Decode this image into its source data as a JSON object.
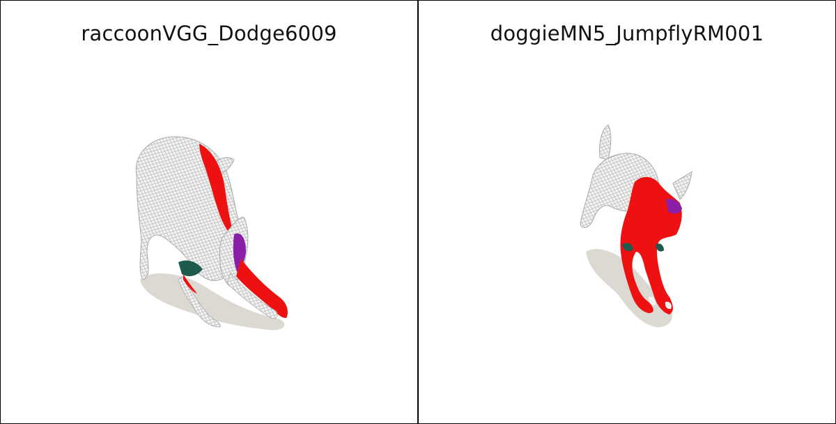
{
  "panels": [
    {
      "title": "raccoonVGG_Dodge6009"
    },
    {
      "title": "doggieMN5_JumpflyRM001"
    }
  ],
  "colors": {
    "background": "#ffffff",
    "border": "#000000",
    "shadow": "#dcd8d2",
    "mesh_fill": "#f2f2f2",
    "mesh_line": "#b9b9b9",
    "error_high": "#ee1111",
    "error_mid": "#8a1fa8",
    "error_low": "#1f5a4e"
  }
}
